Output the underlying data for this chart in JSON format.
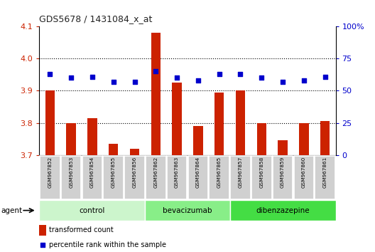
{
  "title": "GDS5678 / 1431084_x_at",
  "samples": [
    "GSM967852",
    "GSM967853",
    "GSM967854",
    "GSM967855",
    "GSM967856",
    "GSM967862",
    "GSM967863",
    "GSM967864",
    "GSM967865",
    "GSM967857",
    "GSM967858",
    "GSM967859",
    "GSM967860",
    "GSM967861"
  ],
  "transformed_counts": [
    3.9,
    3.8,
    3.815,
    3.735,
    3.72,
    4.08,
    3.925,
    3.79,
    3.895,
    3.9,
    3.8,
    3.745,
    3.8,
    3.805
  ],
  "percentile_ranks": [
    63,
    60,
    61,
    57,
    57,
    65,
    60,
    58,
    63,
    63,
    60,
    57,
    58,
    61
  ],
  "group_defs": [
    {
      "name": "control",
      "start": 0,
      "end": 4,
      "color": "#ccf5cc"
    },
    {
      "name": "bevacizumab",
      "start": 5,
      "end": 8,
      "color": "#88ee88"
    },
    {
      "name": "dibenzazepine",
      "start": 9,
      "end": 13,
      "color": "#44dd44"
    }
  ],
  "ylim_left": [
    3.7,
    4.1
  ],
  "ylim_right": [
    0,
    100
  ],
  "yticks_left": [
    3.7,
    3.8,
    3.9,
    4.0,
    4.1
  ],
  "yticks_right": [
    0,
    25,
    50,
    75,
    100
  ],
  "bar_color": "#cc2200",
  "dot_color": "#0000cc",
  "sample_box_color": "#d0d0d0",
  "left_tick_color": "#cc2200",
  "right_tick_color": "#0000cc"
}
